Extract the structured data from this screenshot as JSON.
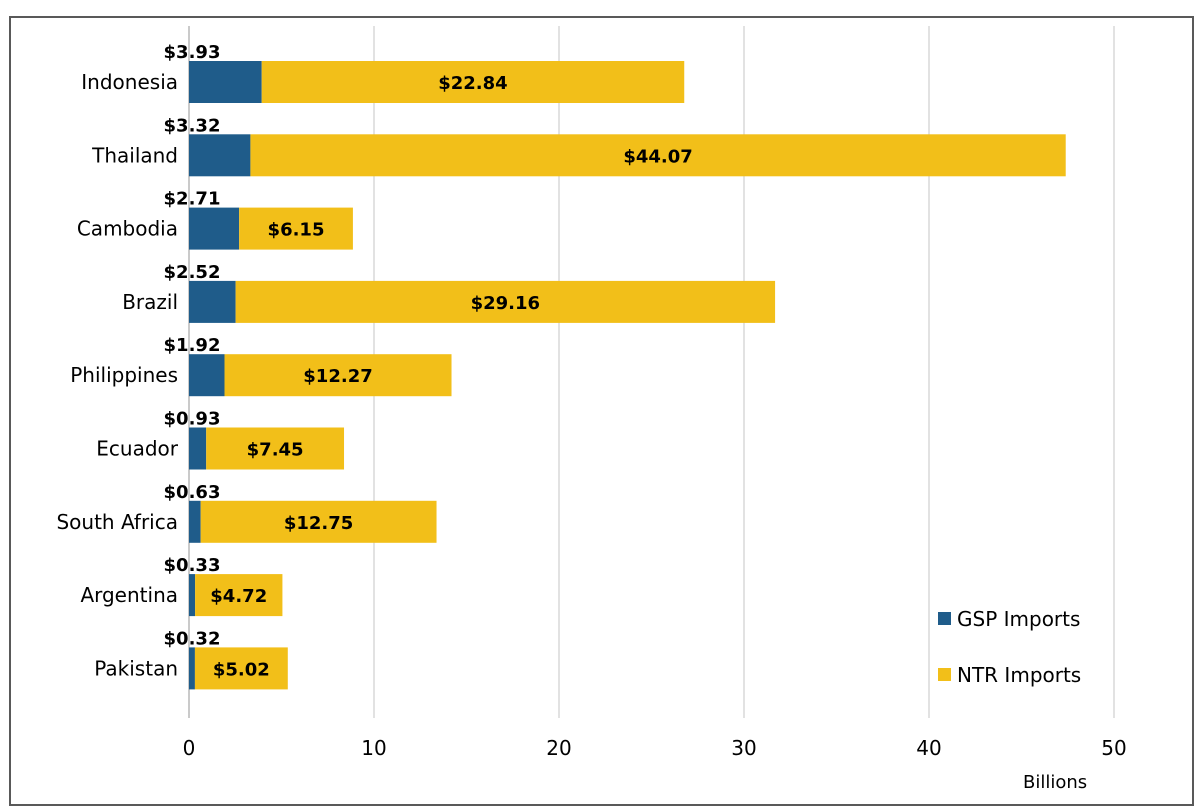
{
  "chart_data": {
    "type": "bar",
    "orientation": "horizontal",
    "stacked": true,
    "title": "",
    "xlabel": "Billions",
    "ylabel": "",
    "xlim": [
      0,
      50
    ],
    "xticks": [
      0,
      10,
      20,
      30,
      40,
      50
    ],
    "grid": true,
    "legend_position": "bottom-right",
    "categories": [
      "Indonesia",
      "Thailand",
      "Cambodia",
      "Brazil",
      "Philippines",
      "Ecuador",
      "South Africa",
      "Argentina",
      "Pakistan"
    ],
    "series": [
      {
        "name": "GSP Imports",
        "color": "#1f5c8a",
        "values": [
          3.93,
          3.32,
          2.71,
          2.52,
          1.92,
          0.93,
          0.63,
          0.33,
          0.32
        ],
        "labels": [
          "$3.93",
          "$3.32",
          "$2.71",
          "$2.52",
          "$1.92",
          "$0.93",
          "$0.63",
          "$0.33",
          "$0.32"
        ]
      },
      {
        "name": "NTR Imports",
        "color": "#f2bf19",
        "values": [
          22.84,
          44.07,
          6.15,
          29.16,
          12.27,
          7.45,
          12.75,
          4.72,
          5.02
        ],
        "labels": [
          "$22.84",
          "$44.07",
          "$6.15",
          "$29.16",
          "$12.27",
          "$7.45",
          "$12.75",
          "$4.72",
          "$5.02"
        ]
      }
    ]
  }
}
